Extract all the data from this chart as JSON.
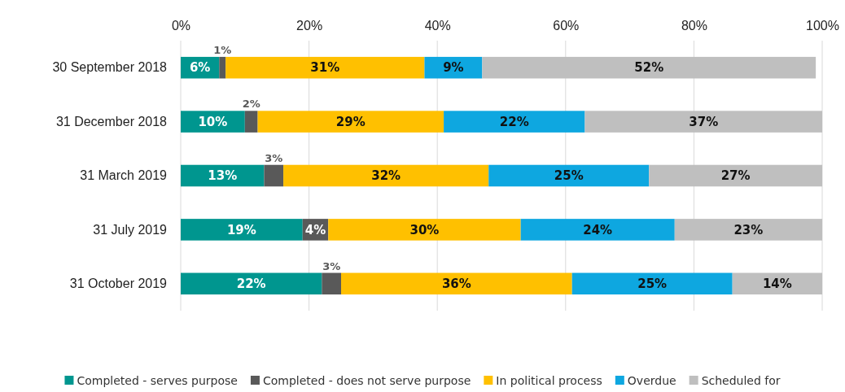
{
  "chart_data": {
    "type": "bar",
    "orientation": "horizontal",
    "stacked": true,
    "categories": [
      "30 September 2018",
      "31 December 2018",
      "31 March 2019",
      "31 July 2019",
      "31 October 2019"
    ],
    "series": [
      {
        "name": "Completed - serves purpose",
        "color": "#00968f",
        "values": [
          6,
          10,
          13,
          19,
          22
        ],
        "value_labels": [
          "6%",
          "10%",
          "13%",
          "19%",
          "22%"
        ]
      },
      {
        "name": "Completed - does not serve purpose",
        "color": "#595959",
        "values": [
          1,
          2,
          3,
          4,
          3
        ],
        "value_labels": [
          "1%",
          "2%",
          "3%",
          "4%",
          "3%"
        ]
      },
      {
        "name": "In political process",
        "color": "#ffc000",
        "values": [
          31,
          29,
          32,
          30,
          36
        ],
        "value_labels": [
          "31%",
          "29%",
          "32%",
          "30%",
          "36%"
        ]
      },
      {
        "name": "Overdue",
        "color": "#0ea7e0",
        "values": [
          9,
          22,
          25,
          24,
          25
        ],
        "value_labels": [
          "9%",
          "22%",
          "25%",
          "24%",
          "25%"
        ]
      },
      {
        "name": "Scheduled for",
        "color": "#bfbfbf",
        "values": [
          52,
          37,
          27,
          23,
          14
        ],
        "value_labels": [
          "52%",
          "37%",
          "27%",
          "23%",
          "14%"
        ]
      }
    ],
    "xlim": [
      0,
      100
    ],
    "xticks": [
      {
        "value": 0,
        "label": "0%"
      },
      {
        "value": 20,
        "label": "20%"
      },
      {
        "value": 40,
        "label": "40%"
      },
      {
        "value": 60,
        "label": "60%"
      },
      {
        "value": 80,
        "label": "80%"
      },
      {
        "value": 100,
        "label": "100%"
      }
    ],
    "grid": "x",
    "legend": "bottom"
  }
}
